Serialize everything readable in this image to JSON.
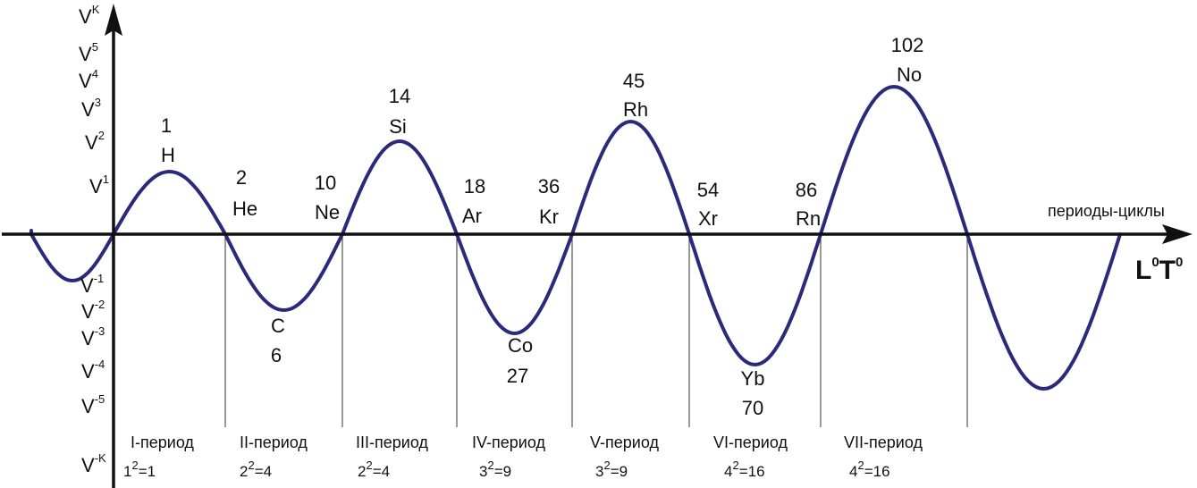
{
  "x_axis_label": "периоды-циклы",
  "x_axis_unit": {
    "base": [
      "L",
      "T"
    ],
    "sup": [
      "0",
      "0"
    ]
  },
  "y_axis_top": {
    "base": "V",
    "sup": "K"
  },
  "y_ticks": [
    {
      "base": "V",
      "sup": "5"
    },
    {
      "base": "V",
      "sup": "4"
    },
    {
      "base": "V",
      "sup": "3"
    },
    {
      "base": "V",
      "sup": "2"
    },
    {
      "base": "V",
      "sup": "1"
    },
    {
      "base": "V",
      "sup": "-1"
    },
    {
      "base": "V",
      "sup": "-2"
    },
    {
      "base": "V",
      "sup": "-3"
    },
    {
      "base": "V",
      "sup": "-4"
    },
    {
      "base": "V",
      "sup": "-5"
    },
    {
      "base": "V",
      "sup": "-K"
    }
  ],
  "elements": [
    {
      "number": "1",
      "symbol": "H"
    },
    {
      "number": "2",
      "symbol": "He"
    },
    {
      "number": "6",
      "symbol": "C"
    },
    {
      "number": "10",
      "symbol": "Ne"
    },
    {
      "number": "14",
      "symbol": "Si"
    },
    {
      "number": "18",
      "symbol": "Ar"
    },
    {
      "number": "27",
      "symbol": "Co"
    },
    {
      "number": "36",
      "symbol": "Kr"
    },
    {
      "number": "45",
      "symbol": "Rh"
    },
    {
      "number": "54",
      "symbol": "Xr"
    },
    {
      "number": "70",
      "symbol": "Yb"
    },
    {
      "number": "86",
      "symbol": "Rn"
    },
    {
      "number": "102",
      "symbol": "No"
    }
  ],
  "periods": [
    {
      "name": "I-период",
      "sq_base": "1",
      "sq_sup": "2",
      "sq_val": "=1"
    },
    {
      "name": "II-период",
      "sq_base": "2",
      "sq_sup": "2",
      "sq_val": "=4"
    },
    {
      "name": "III-период",
      "sq_base": "2",
      "sq_sup": "2",
      "sq_val": "=4"
    },
    {
      "name": "IV-период",
      "sq_base": "3",
      "sq_sup": "2",
      "sq_val": "=9"
    },
    {
      "name": "V-период",
      "sq_base": "3",
      "sq_sup": "2",
      "sq_val": "=9"
    },
    {
      "name": "VI-период",
      "sq_base": "4",
      "sq_sup": "2",
      "sq_val": "=16"
    },
    {
      "name": "VII-период",
      "sq_base": "4",
      "sq_sup": "2",
      "sq_val": "=16"
    }
  ],
  "colors": {
    "wave": "#2b2a7a",
    "axis": "#111111",
    "divider": "#333333"
  }
}
